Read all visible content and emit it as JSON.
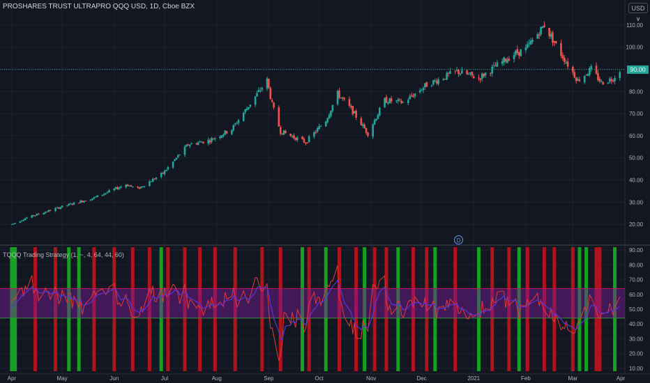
{
  "header": {
    "title": "PROSHARES TRUST ULTRAPRO QQQ USD, 1D, Cboe BZX",
    "currency_label": "USD ∨",
    "indicator_title": "TQQQ Trading Strategy (1, ~, 4, 64, 44, 60)",
    "dividend_marker": "D"
  },
  "colors": {
    "background": "#131722",
    "up": "#26a69a",
    "down": "#ef5350",
    "grid": "#1e2230",
    "signal_green": "#16a823",
    "signal_red": "#b7131b",
    "rsi_line": "#e53935",
    "signal_line": "#5c35d4",
    "band_fill": "#7a1d9b",
    "band_line_top": "#c2185b",
    "band_line_bottom": "#388e3c"
  },
  "chart_data": [
    {
      "type": "candlestick",
      "title": "PROSHARES TRUST ULTRAPRO QQQ USD, 1D, Cboe BZX",
      "x_tick_labels": [
        "Apr",
        "May",
        "Jun",
        "Jul",
        "Aug",
        "Sep",
        "Oct",
        "Nov",
        "Dec",
        "2021",
        "Feb",
        "Mar",
        "Apr"
      ],
      "y_tick_labels": [
        "20.00",
        "30.00",
        "40.00",
        "50.00",
        "60.00",
        "70.00",
        "80.00",
        "90.00",
        "100.00",
        "110.00"
      ],
      "ylim": [
        15,
        115
      ],
      "last_price": 90.0,
      "last_price_label": "90.00",
      "series_anchors": [
        {
          "date": "2020-04-01",
          "close": 20
        },
        {
          "date": "2020-04-10",
          "close": 23
        },
        {
          "date": "2020-05-01",
          "close": 28
        },
        {
          "date": "2020-05-20",
          "close": 32
        },
        {
          "date": "2020-06-08",
          "close": 38
        },
        {
          "date": "2020-06-15",
          "close": 36
        },
        {
          "date": "2020-06-30",
          "close": 43
        },
        {
          "date": "2020-07-15",
          "close": 56
        },
        {
          "date": "2020-07-28",
          "close": 58
        },
        {
          "date": "2020-08-10",
          "close": 63
        },
        {
          "date": "2020-08-31",
          "close": 85
        },
        {
          "date": "2020-09-03",
          "close": 74
        },
        {
          "date": "2020-09-08",
          "close": 62
        },
        {
          "date": "2020-09-23",
          "close": 57
        },
        {
          "date": "2020-10-05",
          "close": 67
        },
        {
          "date": "2020-10-12",
          "close": 79
        },
        {
          "date": "2020-10-20",
          "close": 72
        },
        {
          "date": "2020-10-30",
          "close": 61
        },
        {
          "date": "2020-11-09",
          "close": 76
        },
        {
          "date": "2020-11-20",
          "close": 75
        },
        {
          "date": "2020-12-04",
          "close": 83
        },
        {
          "date": "2020-12-22",
          "close": 89
        },
        {
          "date": "2021-01-04",
          "close": 86
        },
        {
          "date": "2021-01-25",
          "close": 97
        },
        {
          "date": "2021-02-01",
          "close": 99
        },
        {
          "date": "2021-02-12",
          "close": 110
        },
        {
          "date": "2021-02-22",
          "close": 97
        },
        {
          "date": "2021-03-04",
          "close": 85
        },
        {
          "date": "2021-03-12",
          "close": 90
        },
        {
          "date": "2021-03-18",
          "close": 84
        },
        {
          "date": "2021-03-25",
          "close": 86
        },
        {
          "date": "2021-03-29",
          "close": 90
        }
      ]
    },
    {
      "type": "line",
      "title": "TQQQ Trading Strategy (1, ~, 4, 64, 44, 60)",
      "y_tick_labels": [
        "10.00",
        "20.00",
        "30.00",
        "40.00",
        "50.00",
        "60.00",
        "70.00",
        "80.00",
        "90.00"
      ],
      "ylim": [
        8,
        92
      ],
      "band": {
        "upper": 64,
        "lower": 44
      },
      "signals": [
        {
          "date": "2020-04-01",
          "type": "buy"
        },
        {
          "date": "2020-04-03",
          "type": "buy"
        },
        {
          "date": "2020-04-15",
          "type": "sell"
        },
        {
          "date": "2020-04-27",
          "type": "sell"
        },
        {
          "date": "2020-05-05",
          "type": "buy"
        },
        {
          "date": "2020-05-11",
          "type": "buy"
        },
        {
          "date": "2020-05-20",
          "type": "sell"
        },
        {
          "date": "2020-06-01",
          "type": "sell"
        },
        {
          "date": "2020-06-12",
          "type": "sell"
        },
        {
          "date": "2020-06-22",
          "type": "sell"
        },
        {
          "date": "2020-06-29",
          "type": "buy"
        },
        {
          "date": "2020-07-03",
          "type": "sell"
        },
        {
          "date": "2020-07-13",
          "type": "sell"
        },
        {
          "date": "2020-07-22",
          "type": "sell"
        },
        {
          "date": "2020-07-31",
          "type": "sell"
        },
        {
          "date": "2020-08-12",
          "type": "sell"
        },
        {
          "date": "2020-08-28",
          "type": "sell"
        },
        {
          "date": "2020-09-08",
          "type": "sell"
        },
        {
          "date": "2020-09-21",
          "type": "buy"
        },
        {
          "date": "2020-09-25",
          "type": "sell"
        },
        {
          "date": "2020-10-05",
          "type": "buy"
        },
        {
          "date": "2020-10-13",
          "type": "sell"
        },
        {
          "date": "2020-10-23",
          "type": "sell"
        },
        {
          "date": "2020-10-28",
          "type": "buy"
        },
        {
          "date": "2020-11-03",
          "type": "sell"
        },
        {
          "date": "2020-11-10",
          "type": "sell"
        },
        {
          "date": "2020-11-17",
          "type": "buy"
        },
        {
          "date": "2020-11-26",
          "type": "sell"
        },
        {
          "date": "2020-12-04",
          "type": "sell"
        },
        {
          "date": "2020-12-09",
          "type": "buy"
        },
        {
          "date": "2020-12-21",
          "type": "sell"
        },
        {
          "date": "2021-01-04",
          "type": "buy"
        },
        {
          "date": "2021-01-12",
          "type": "sell"
        },
        {
          "date": "2021-01-22",
          "type": "sell"
        },
        {
          "date": "2021-01-28",
          "type": "buy"
        },
        {
          "date": "2021-02-02",
          "type": "sell"
        },
        {
          "date": "2021-02-12",
          "type": "sell"
        },
        {
          "date": "2021-02-18",
          "type": "sell"
        },
        {
          "date": "2021-03-01",
          "type": "sell"
        },
        {
          "date": "2021-03-05",
          "type": "buy"
        },
        {
          "date": "2021-03-09",
          "type": "buy"
        },
        {
          "date": "2021-03-15",
          "type": "sell"
        },
        {
          "date": "2021-03-17",
          "type": "sell"
        },
        {
          "date": "2021-03-26",
          "type": "buy"
        }
      ]
    }
  ]
}
